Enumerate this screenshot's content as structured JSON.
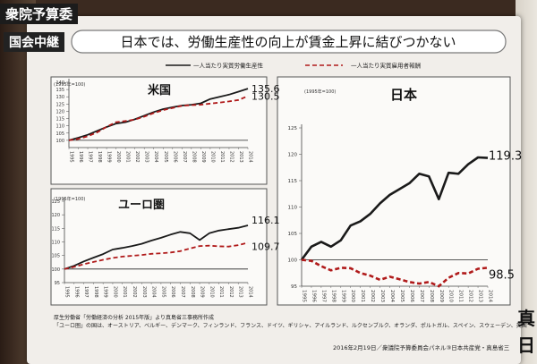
{
  "broadcast": {
    "channel_tag": "衆院予算委",
    "relay_tag": "国会中継",
    "side_glyph_1": "真",
    "side_glyph_2": "日"
  },
  "panel": {
    "headline": "日本では、労働生産性の向上が賃金上昇に結びつかない",
    "legend": {
      "productivity": "一人当たり実質労働生産性",
      "compensation": "一人当たり実質雇用者報酬"
    },
    "source_line_1": "厚生労働省「労働経済の分析 2015年版」より真島省三事務所作成",
    "source_line_2": "「ユーロ圏」の国は、オーストリア、ベルギー、デンマーク、フィンランド、フランス、ドイツ、ギリシャ、アイルランド、ルクセンブルク、オランダ、ポルトガル、スペイン、スウェーデン、英国",
    "footer": "2016年2月19日／衆議院予算委員会パネル③日本共産党・真島省三"
  },
  "colors": {
    "productivity": "#1a1a1a",
    "compensation": "#b01a1a"
  },
  "chart_data": [
    {
      "id": "us",
      "type": "line",
      "title": "米国",
      "ylabel": "(1995年=100)",
      "x": [
        "1995",
        "1996",
        "1997",
        "1998",
        "1999",
        "2000",
        "2001",
        "2002",
        "2003",
        "2004",
        "2005",
        "2006",
        "2007",
        "2008",
        "2009",
        "2010",
        "2011",
        "2012",
        "2013",
        "2014"
      ],
      "ylim": [
        95,
        140
      ],
      "yticks": [
        100,
        105,
        110,
        115,
        120,
        125,
        130,
        135,
        140
      ],
      "ytick_labels": [
        "100",
        "105",
        "110",
        "115",
        "120",
        "125",
        "130",
        "135",
        "140"
      ],
      "series": [
        {
          "name": "一人当たり実質労働生産性",
          "style": "solid",
          "values": [
            100,
            101.8,
            103.8,
            106.5,
            109.2,
            111.5,
            112.5,
            114.5,
            117,
            119.5,
            121.5,
            122.8,
            124,
            124.5,
            125.5,
            128.5,
            130,
            131.5,
            133.5,
            135.6
          ]
        },
        {
          "name": "一人当たり実質雇用者報酬",
          "style": "dashed",
          "values": [
            100,
            101,
            102.8,
            105.5,
            109.3,
            112.5,
            113.3,
            114.3,
            116.3,
            118.8,
            120.8,
            122.3,
            123.8,
            124.3,
            124.5,
            125.3,
            126,
            126.8,
            127.8,
            130.5
          ]
        }
      ],
      "end_labels": [
        "135.6",
        "130.5"
      ]
    },
    {
      "id": "euro",
      "type": "line",
      "title": "ユーロ圏",
      "ylabel": "(1995年=100)",
      "x": [
        "1995",
        "1996",
        "1997",
        "1998",
        "1999",
        "2000",
        "2001",
        "2002",
        "2003",
        "2004",
        "2005",
        "2006",
        "2007",
        "2008",
        "2009",
        "2010",
        "2011",
        "2012",
        "2013",
        "2014"
      ],
      "ylim": [
        95,
        125
      ],
      "yticks": [
        95,
        100,
        105,
        110,
        115,
        120,
        125
      ],
      "ytick_labels": [
        "95",
        "100",
        "105",
        "110",
        "115",
        "120",
        "125"
      ],
      "series": [
        {
          "name": "一人当たり実質労働生産性",
          "style": "solid",
          "values": [
            100,
            101.2,
            102.8,
            104.2,
            105.5,
            107.2,
            107.8,
            108.5,
            109.3,
            110.5,
            111.5,
            112.7,
            113.7,
            113.2,
            110.7,
            113.2,
            114.2,
            114.7,
            115.2,
            116.1
          ]
        },
        {
          "name": "一人当たり実質雇用者報酬",
          "style": "dashed",
          "values": [
            100,
            100.8,
            101.8,
            102.6,
            103.4,
            104.1,
            104.6,
            104.9,
            105.2,
            105.6,
            105.8,
            106.1,
            106.6,
            107.6,
            108.5,
            108.6,
            108.4,
            108.3,
            108.8,
            109.7
          ]
        }
      ],
      "end_labels": [
        "116.1",
        "109.7"
      ]
    },
    {
      "id": "japan",
      "type": "line",
      "title": "日本",
      "ylabel": "(1995年=100)",
      "x": [
        "1995",
        "1996",
        "1997",
        "1998",
        "1999",
        "2000",
        "2001",
        "2002",
        "2003",
        "2004",
        "2005",
        "2006",
        "2007",
        "2008",
        "2009",
        "2010",
        "2011",
        "2012",
        "2013",
        "2014"
      ],
      "ylim": [
        95,
        125
      ],
      "yticks": [
        95,
        100,
        105,
        110,
        115,
        120,
        125
      ],
      "ytick_labels": [
        "95",
        "100",
        "105",
        "110",
        "115",
        "120",
        "125"
      ],
      "series": [
        {
          "name": "一人当たり実質労働生産性",
          "style": "solid",
          "values": [
            100,
            102.5,
            103.4,
            102.5,
            103.7,
            106.5,
            107.3,
            108.7,
            110.7,
            112.3,
            113.4,
            114.5,
            116.3,
            115.8,
            111.5,
            116.5,
            116.3,
            118.1,
            119.4,
            119.3
          ]
        },
        {
          "name": "一人当たり実質雇用者報酬",
          "style": "dashed",
          "values": [
            100,
            99.8,
            98.8,
            98,
            98.5,
            98.4,
            97.5,
            97,
            96.2,
            96.8,
            96.3,
            95.8,
            95.5,
            95.8,
            95,
            96.6,
            97.5,
            97.4,
            98.3,
            98.5
          ]
        }
      ],
      "end_labels": [
        "119.3",
        "98.5"
      ]
    }
  ]
}
